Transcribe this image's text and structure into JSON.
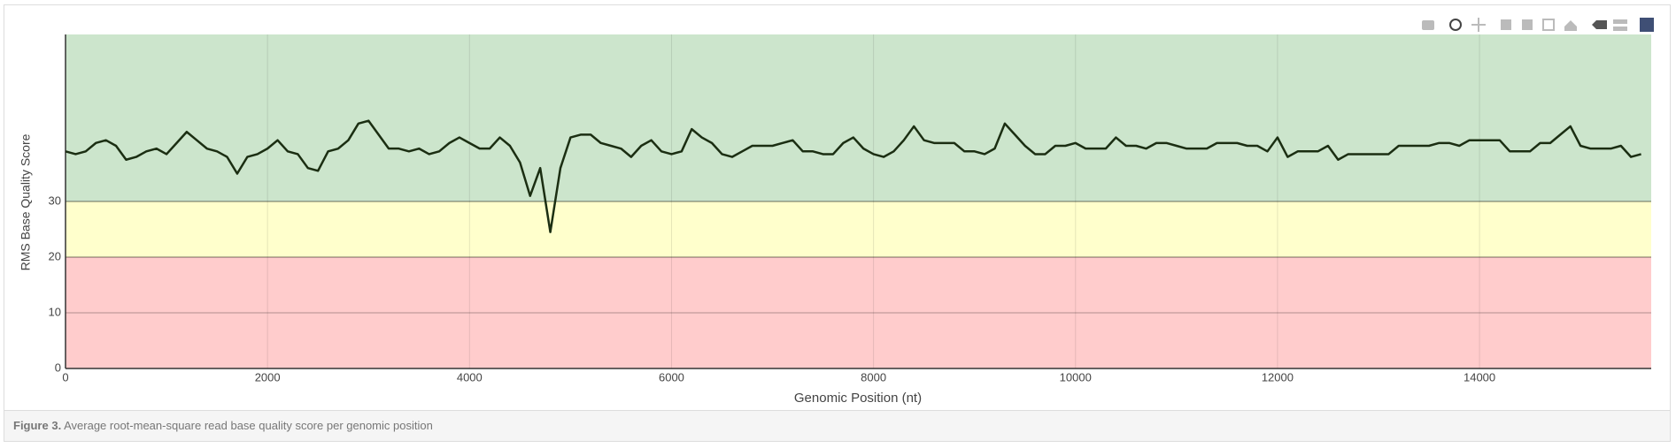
{
  "chart_data": {
    "type": "line",
    "xlabel": "Genomic Position (nt)",
    "ylabel": "RMS Base Quality Score",
    "caption_label": "Figure 3.",
    "caption": "Average root-mean-square read base quality score per genomic position",
    "xlim": [
      0,
      15700
    ],
    "ylim": [
      0,
      60
    ],
    "xticks": [
      0,
      2000,
      4000,
      6000,
      8000,
      10000,
      12000,
      14000
    ],
    "yticks": [
      0,
      10,
      20,
      30
    ],
    "grid": true,
    "bands": [
      {
        "from": 0,
        "to": 20,
        "color": "#ffcccc"
      },
      {
        "from": 20,
        "to": 30,
        "color": "#ffffcc"
      },
      {
        "from": 30,
        "to": 60,
        "color": "#cce5cc"
      }
    ],
    "x": [
      0,
      100,
      200,
      300,
      400,
      500,
      600,
      700,
      800,
      900,
      1000,
      1100,
      1200,
      1300,
      1400,
      1500,
      1600,
      1700,
      1800,
      1900,
      2000,
      2100,
      2200,
      2300,
      2400,
      2500,
      2600,
      2700,
      2800,
      2900,
      3000,
      3100,
      3200,
      3300,
      3400,
      3500,
      3600,
      3700,
      3800,
      3900,
      4000,
      4100,
      4200,
      4300,
      4400,
      4500,
      4600,
      4700,
      4800,
      4900,
      5000,
      5100,
      5200,
      5300,
      5400,
      5500,
      5600,
      5700,
      5800,
      5900,
      6000,
      6100,
      6200,
      6300,
      6400,
      6500,
      6600,
      6700,
      6800,
      6900,
      7000,
      7100,
      7200,
      7300,
      7400,
      7500,
      7600,
      7700,
      7800,
      7900,
      8000,
      8100,
      8200,
      8300,
      8400,
      8500,
      8600,
      8700,
      8800,
      8900,
      9000,
      9100,
      9200,
      9300,
      9400,
      9500,
      9600,
      9700,
      9800,
      9900,
      10000,
      10100,
      10200,
      10300,
      10400,
      10500,
      10600,
      10700,
      10800,
      10900,
      11000,
      11100,
      11200,
      11300,
      11400,
      11500,
      11600,
      11700,
      11800,
      11900,
      12000,
      12100,
      12200,
      12300,
      12400,
      12500,
      12600,
      12700,
      12800,
      12900,
      13000,
      13100,
      13200,
      13300,
      13400,
      13500,
      13600,
      13700,
      13800,
      13900,
      14000,
      14100,
      14200,
      14300,
      14400,
      14500,
      14600,
      14700,
      14800,
      14900,
      15000,
      15100,
      15200,
      15300,
      15400,
      15500,
      15600
    ],
    "series": [
      {
        "color": "#1b2e12",
        "values": [
          39,
          38.5,
          39,
          40.5,
          41,
          40,
          37.5,
          38,
          39,
          39.5,
          38.5,
          40.5,
          42.5,
          41,
          39.5,
          39,
          38,
          35,
          38,
          38.5,
          39.5,
          41,
          39,
          38.5,
          36,
          35.5,
          39,
          39.5,
          41,
          44,
          44.5,
          42,
          39.5,
          39.5,
          39,
          39.5,
          38.5,
          39,
          40.5,
          41.5,
          40.5,
          39.5,
          39.5,
          41.5,
          40,
          37,
          31,
          36,
          24.5,
          36,
          41.5,
          42,
          42,
          40.5,
          40,
          39.5,
          38,
          40,
          41,
          39,
          38.5,
          39,
          43,
          41.5,
          40.5,
          38.5,
          38,
          39,
          40,
          40,
          40,
          40.5,
          41,
          39,
          39,
          38.5,
          38.5,
          40.5,
          41.5,
          39.5,
          38.5,
          38,
          39,
          41,
          43.5,
          41,
          40.5,
          40.5,
          40.5,
          39,
          39,
          38.5,
          39.5,
          44,
          42,
          40,
          38.5,
          38.5,
          40,
          40,
          40.5,
          39.5,
          39.5,
          39.5,
          41.5,
          40,
          40,
          39.5,
          40.5,
          40.5,
          40,
          39.5,
          39.5,
          39.5,
          40.5,
          40.5,
          40.5,
          40,
          40,
          39,
          41.5,
          38,
          39,
          39,
          39,
          40,
          37.5,
          38.5,
          38.5,
          38.5,
          38.5,
          38.5,
          40,
          40,
          40,
          40,
          40.5,
          40.5,
          40,
          41,
          41,
          41,
          41,
          39,
          39,
          39,
          40.5,
          40.5,
          42,
          43.5,
          40,
          39.5,
          39.5,
          39.5,
          40,
          38,
          38.5
        ]
      }
    ]
  }
}
